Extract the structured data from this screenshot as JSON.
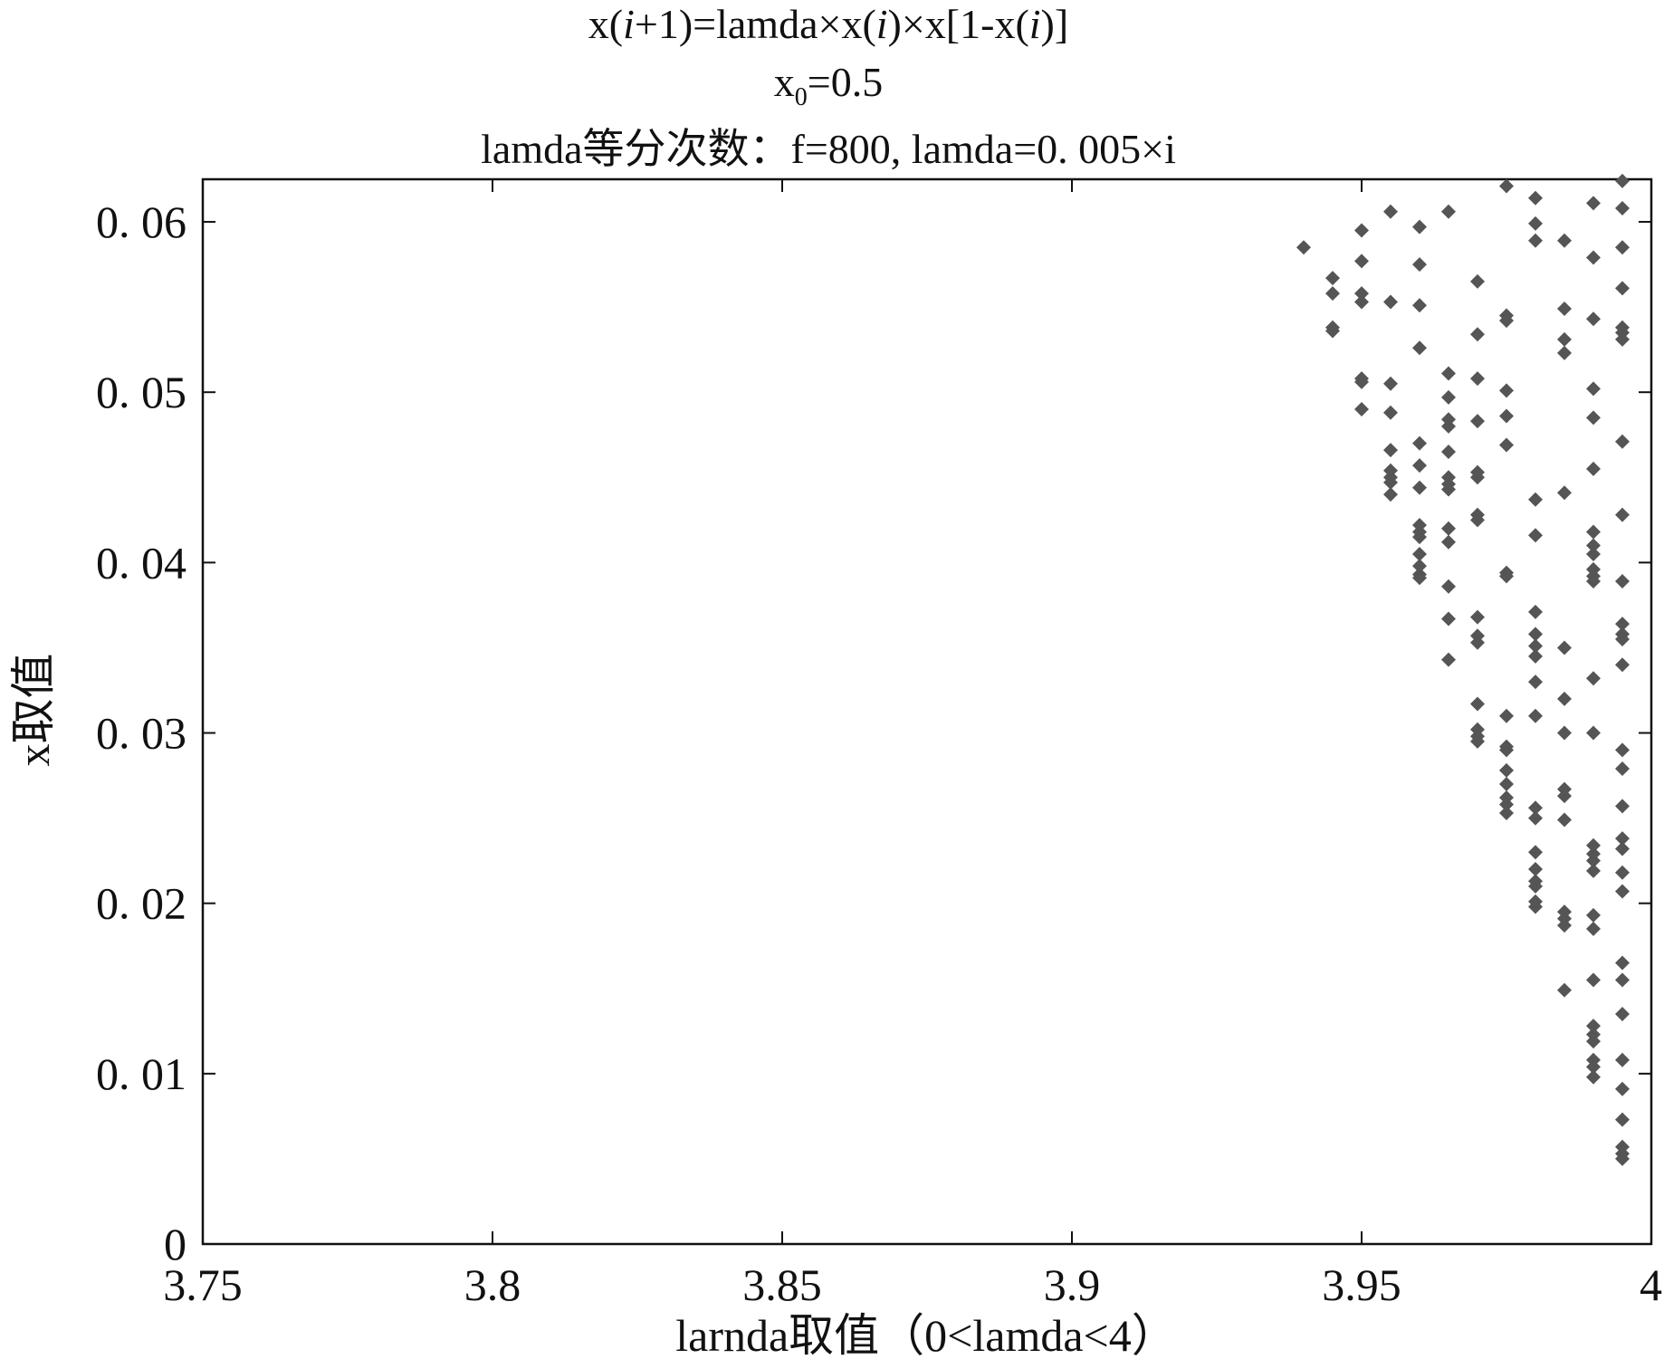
{
  "chart_data": {
    "type": "scatter",
    "title": {
      "line1_parts": [
        "x(",
        "i",
        "+1)=lamda×x(",
        "i",
        ")×x[1-x(",
        "i",
        ")]"
      ],
      "line2_parts": [
        "x",
        "0",
        "=0.5"
      ],
      "line3": "lamda等分次数：f=800, lamda=0. 005×i"
    },
    "xlabel": "larnda取值（0<lamda<4）",
    "ylabel": "x取值",
    "xlim": [
      3.75,
      4.0
    ],
    "ylim": [
      0,
      0.0625
    ],
    "x_ticks": [
      3.75,
      3.8,
      3.85,
      3.9,
      3.95,
      4.0
    ],
    "x_tick_labels": [
      "3.75",
      "3.8",
      "3.85",
      "3.9",
      "3.95",
      "4"
    ],
    "y_ticks": [
      0,
      0.01,
      0.02,
      0.03,
      0.04,
      0.05,
      0.06
    ],
    "y_tick_labels": [
      "0",
      "0. 01",
      "0. 02",
      "0. 03",
      "0. 04",
      "0. 05",
      "0. 06"
    ],
    "grid": false,
    "marker": "diamond",
    "marker_color": "#555555",
    "series": [
      {
        "points": [
          [
            3.94,
            0.0585
          ],
          [
            3.945,
            0.0567
          ],
          [
            3.945,
            0.0558
          ],
          [
            3.945,
            0.0538
          ],
          [
            3.945,
            0.0536
          ],
          [
            3.95,
            0.0595
          ],
          [
            3.95,
            0.0577
          ],
          [
            3.95,
            0.0558
          ],
          [
            3.95,
            0.0553
          ],
          [
            3.95,
            0.0508
          ],
          [
            3.95,
            0.0506
          ],
          [
            3.95,
            0.049
          ],
          [
            3.955,
            0.0606
          ],
          [
            3.955,
            0.0553
          ],
          [
            3.955,
            0.0505
          ],
          [
            3.955,
            0.0488
          ],
          [
            3.955,
            0.0466
          ],
          [
            3.955,
            0.0454
          ],
          [
            3.955,
            0.045
          ],
          [
            3.955,
            0.0447
          ],
          [
            3.955,
            0.044
          ],
          [
            3.96,
            0.0597
          ],
          [
            3.96,
            0.0575
          ],
          [
            3.96,
            0.0551
          ],
          [
            3.96,
            0.0526
          ],
          [
            3.96,
            0.047
          ],
          [
            3.96,
            0.0457
          ],
          [
            3.96,
            0.0444
          ],
          [
            3.96,
            0.0422
          ],
          [
            3.96,
            0.0418
          ],
          [
            3.96,
            0.0415
          ],
          [
            3.96,
            0.0405
          ],
          [
            3.96,
            0.0398
          ],
          [
            3.96,
            0.0393
          ],
          [
            3.96,
            0.0391
          ],
          [
            3.965,
            0.0606
          ],
          [
            3.965,
            0.0511
          ],
          [
            3.965,
            0.0497
          ],
          [
            3.965,
            0.0484
          ],
          [
            3.965,
            0.048
          ],
          [
            3.965,
            0.0465
          ],
          [
            3.965,
            0.045
          ],
          [
            3.965,
            0.0446
          ],
          [
            3.965,
            0.0443
          ],
          [
            3.965,
            0.042
          ],
          [
            3.965,
            0.0412
          ],
          [
            3.965,
            0.0386
          ],
          [
            3.965,
            0.0367
          ],
          [
            3.965,
            0.0343
          ],
          [
            3.97,
            0.0565
          ],
          [
            3.97,
            0.0534
          ],
          [
            3.97,
            0.0508
          ],
          [
            3.97,
            0.0483
          ],
          [
            3.97,
            0.0453
          ],
          [
            3.97,
            0.045
          ],
          [
            3.97,
            0.0428
          ],
          [
            3.97,
            0.0425
          ],
          [
            3.97,
            0.0368
          ],
          [
            3.97,
            0.0357
          ],
          [
            3.97,
            0.0353
          ],
          [
            3.97,
            0.0317
          ],
          [
            3.97,
            0.0302
          ],
          [
            3.97,
            0.0298
          ],
          [
            3.97,
            0.0295
          ],
          [
            3.975,
            0.0621
          ],
          [
            3.975,
            0.0545
          ],
          [
            3.975,
            0.0542
          ],
          [
            3.975,
            0.0501
          ],
          [
            3.975,
            0.0486
          ],
          [
            3.975,
            0.0469
          ],
          [
            3.975,
            0.0394
          ],
          [
            3.975,
            0.0392
          ],
          [
            3.975,
            0.031
          ],
          [
            3.975,
            0.0292
          ],
          [
            3.975,
            0.029
          ],
          [
            3.975,
            0.0278
          ],
          [
            3.975,
            0.027
          ],
          [
            3.975,
            0.0262
          ],
          [
            3.975,
            0.0258
          ],
          [
            3.975,
            0.0253
          ],
          [
            3.98,
            0.0614
          ],
          [
            3.98,
            0.0599
          ],
          [
            3.98,
            0.0589
          ],
          [
            3.98,
            0.0437
          ],
          [
            3.98,
            0.0416
          ],
          [
            3.98,
            0.0371
          ],
          [
            3.98,
            0.0358
          ],
          [
            3.98,
            0.0351
          ],
          [
            3.98,
            0.0345
          ],
          [
            3.98,
            0.033
          ],
          [
            3.98,
            0.031
          ],
          [
            3.98,
            0.0256
          ],
          [
            3.98,
            0.025
          ],
          [
            3.98,
            0.023
          ],
          [
            3.98,
            0.022
          ],
          [
            3.98,
            0.0213
          ],
          [
            3.98,
            0.021
          ],
          [
            3.98,
            0.0201
          ],
          [
            3.98,
            0.0198
          ],
          [
            3.985,
            0.0589
          ],
          [
            3.985,
            0.0549
          ],
          [
            3.985,
            0.0531
          ],
          [
            3.985,
            0.0523
          ],
          [
            3.985,
            0.0441
          ],
          [
            3.985,
            0.035
          ],
          [
            3.985,
            0.032
          ],
          [
            3.985,
            0.03
          ],
          [
            3.985,
            0.0267
          ],
          [
            3.985,
            0.0263
          ],
          [
            3.985,
            0.0249
          ],
          [
            3.985,
            0.0195
          ],
          [
            3.985,
            0.0191
          ],
          [
            3.985,
            0.0187
          ],
          [
            3.985,
            0.0149
          ],
          [
            3.99,
            0.0611
          ],
          [
            3.99,
            0.0579
          ],
          [
            3.99,
            0.0543
          ],
          [
            3.99,
            0.0502
          ],
          [
            3.99,
            0.0485
          ],
          [
            3.99,
            0.0455
          ],
          [
            3.99,
            0.0418
          ],
          [
            3.99,
            0.041
          ],
          [
            3.99,
            0.0405
          ],
          [
            3.99,
            0.0396
          ],
          [
            3.99,
            0.0392
          ],
          [
            3.99,
            0.0389
          ],
          [
            3.99,
            0.0332
          ],
          [
            3.99,
            0.03
          ],
          [
            3.99,
            0.0234
          ],
          [
            3.99,
            0.0229
          ],
          [
            3.99,
            0.0225
          ],
          [
            3.99,
            0.0219
          ],
          [
            3.99,
            0.0193
          ],
          [
            3.99,
            0.0185
          ],
          [
            3.99,
            0.0155
          ],
          [
            3.99,
            0.0128
          ],
          [
            3.99,
            0.0123
          ],
          [
            3.99,
            0.0119
          ],
          [
            3.99,
            0.0108
          ],
          [
            3.99,
            0.0104
          ],
          [
            3.99,
            0.0098
          ],
          [
            3.995,
            0.0624
          ],
          [
            3.995,
            0.0608
          ],
          [
            3.995,
            0.0585
          ],
          [
            3.995,
            0.0561
          ],
          [
            3.995,
            0.0538
          ],
          [
            3.995,
            0.0535
          ],
          [
            3.995,
            0.0531
          ],
          [
            3.995,
            0.0471
          ],
          [
            3.995,
            0.0428
          ],
          [
            3.995,
            0.0389
          ],
          [
            3.995,
            0.0364
          ],
          [
            3.995,
            0.0358
          ],
          [
            3.995,
            0.0355
          ],
          [
            3.995,
            0.034
          ],
          [
            3.995,
            0.029
          ],
          [
            3.995,
            0.0279
          ],
          [
            3.995,
            0.0257
          ],
          [
            3.995,
            0.0238
          ],
          [
            3.995,
            0.0232
          ],
          [
            3.995,
            0.0218
          ],
          [
            3.995,
            0.0207
          ],
          [
            3.995,
            0.0165
          ],
          [
            3.995,
            0.0155
          ],
          [
            3.995,
            0.0135
          ],
          [
            3.995,
            0.0108
          ],
          [
            3.995,
            0.0091
          ],
          [
            3.995,
            0.0073
          ],
          [
            3.995,
            0.0057
          ],
          [
            3.995,
            0.0053
          ],
          [
            3.995,
            0.005
          ]
        ]
      }
    ]
  }
}
